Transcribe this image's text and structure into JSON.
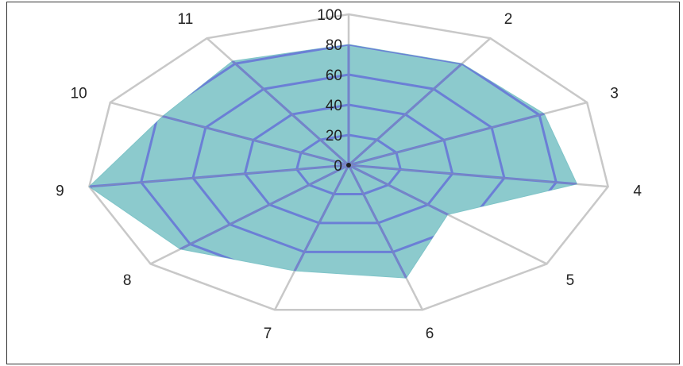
{
  "chart_data": {
    "type": "radar",
    "categories": [
      "1",
      "2",
      "3",
      "4",
      "5",
      "6",
      "7",
      "8",
      "9",
      "10",
      "11"
    ],
    "series": [
      {
        "values": [
          80,
          80,
          82,
          88,
          50,
          78,
          73,
          85,
          100,
          78,
          82
        ]
      }
    ],
    "radial_range": [
      0,
      100
    ],
    "radial_ticks": [
      "0",
      "20",
      "40",
      "60",
      "80",
      "100"
    ],
    "grid": true,
    "colors": {
      "fill": "#7fc4c8",
      "series_grid": "#6b7fd6",
      "outer_grid": "#c8c8c8",
      "text": "#222222"
    }
  }
}
